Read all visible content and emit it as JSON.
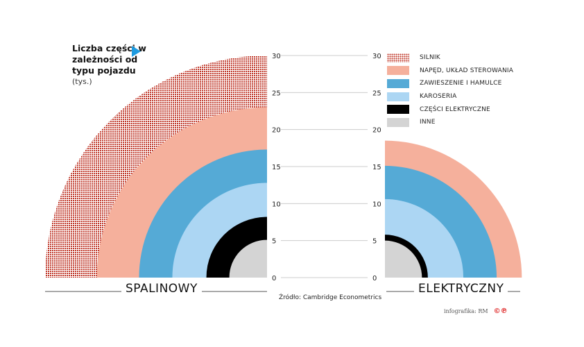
{
  "header": {
    "title": "Liczba części w zależności od typu pojazdu",
    "unit": "(tys.)"
  },
  "source": "Źródło: Cambridge Econometrics",
  "credit": "infografika: RM",
  "credit_logo": "©℗",
  "chart_data": {
    "type": "radial-stacked",
    "title": "Liczba części w zależności od typu pojazdu",
    "ylabel": "(tys.)",
    "ylim": [
      0,
      30
    ],
    "ticks": [
      0,
      5,
      10,
      15,
      20,
      25,
      30
    ],
    "categories": [
      "SILNIK",
      "NAPĘD, UKŁAD STEROWANIA",
      "ZAWIESZENIE I HAMULCE",
      "KAROSERIA",
      "CZĘŚCI ELEKTRYCZNE",
      "INNE"
    ],
    "colors": [
      "#c0392b",
      "#f5b09c",
      "#55aad6",
      "#acd6f3",
      "#000000",
      "#d4d4d4"
    ],
    "series": [
      {
        "name": "SPALINOWY",
        "cumulative": [
          30,
          23,
          17.3,
          12.8,
          8.2,
          5.1
        ]
      },
      {
        "name": "ELEKTRYCZNY",
        "cumulative": [
          null,
          18.5,
          15.1,
          10.6,
          5.8,
          5
        ]
      }
    ],
    "grid": true,
    "legend": "top-right"
  }
}
